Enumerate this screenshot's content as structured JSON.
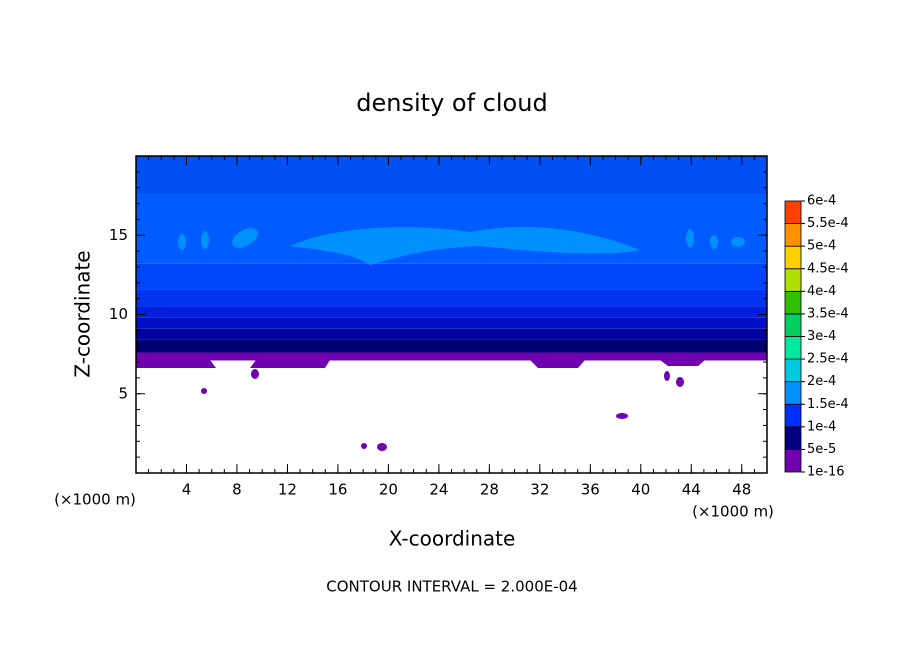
{
  "chart_data": {
    "type": "contour",
    "title": "density of cloud",
    "x_label": "X-coordinate",
    "y_label": "Z-coordinate",
    "x_unit": "(×1000 m)",
    "note": "CONTOUR INTERVAL = 2.000E-04",
    "xlim": [
      0,
      50
    ],
    "ylim": [
      0,
      20
    ],
    "xticks": [
      4,
      8,
      12,
      16,
      20,
      24,
      28,
      32,
      36,
      40,
      44,
      48
    ],
    "yticks": [
      5,
      10,
      15
    ],
    "bands": [
      {
        "z": [
          7.1,
          7.6
        ],
        "color": "#7000b0"
      },
      {
        "z": [
          7.6,
          8.4
        ],
        "color": "#000070"
      },
      {
        "z": [
          8.4,
          9.1
        ],
        "color": "#00009c"
      },
      {
        "z": [
          9.1,
          9.8
        ],
        "color": "#0010c4"
      },
      {
        "z": [
          9.8,
          10.5
        ],
        "color": "#0020dc"
      },
      {
        "z": [
          10.5,
          11.6
        ],
        "color": "#0034f0"
      },
      {
        "z": [
          11.6,
          13.2
        ],
        "color": "#0044fc"
      },
      {
        "z": [
          13.2,
          17.6
        ],
        "color": "#005cff"
      },
      {
        "z": [
          17.6,
          20
        ],
        "color": "#0050f4"
      }
    ],
    "colorbar": {
      "ticks": [
        {
          "value": 1e-16,
          "label": "1e-16"
        },
        {
          "value": 5e-05,
          "label": "5e-5"
        },
        {
          "value": 0.0001,
          "label": "1e-4"
        },
        {
          "value": 0.00015,
          "label": "1.5e-4"
        },
        {
          "value": 0.0002,
          "label": "2e-4"
        },
        {
          "value": 0.00025,
          "label": "2.5e-4"
        },
        {
          "value": 0.0003,
          "label": "3e-4"
        },
        {
          "value": 0.00035,
          "label": "3.5e-4"
        },
        {
          "value": 0.0004,
          "label": "4e-4"
        },
        {
          "value": 0.00045,
          "label": "4.5e-4"
        },
        {
          "value": 0.0005,
          "label": "5e-4"
        },
        {
          "value": 0.00055,
          "label": "5.5e-4"
        },
        {
          "value": 0.0006,
          "label": "6e-4"
        }
      ],
      "colors": [
        "#7000b0",
        "#000080",
        "#0030ff",
        "#0090ff",
        "#00c8e0",
        "#00e8a0",
        "#00d060",
        "#30c000",
        "#b0e000",
        "#ffd000",
        "#ff9000",
        "#ff4000",
        "#ff8080"
      ]
    }
  }
}
